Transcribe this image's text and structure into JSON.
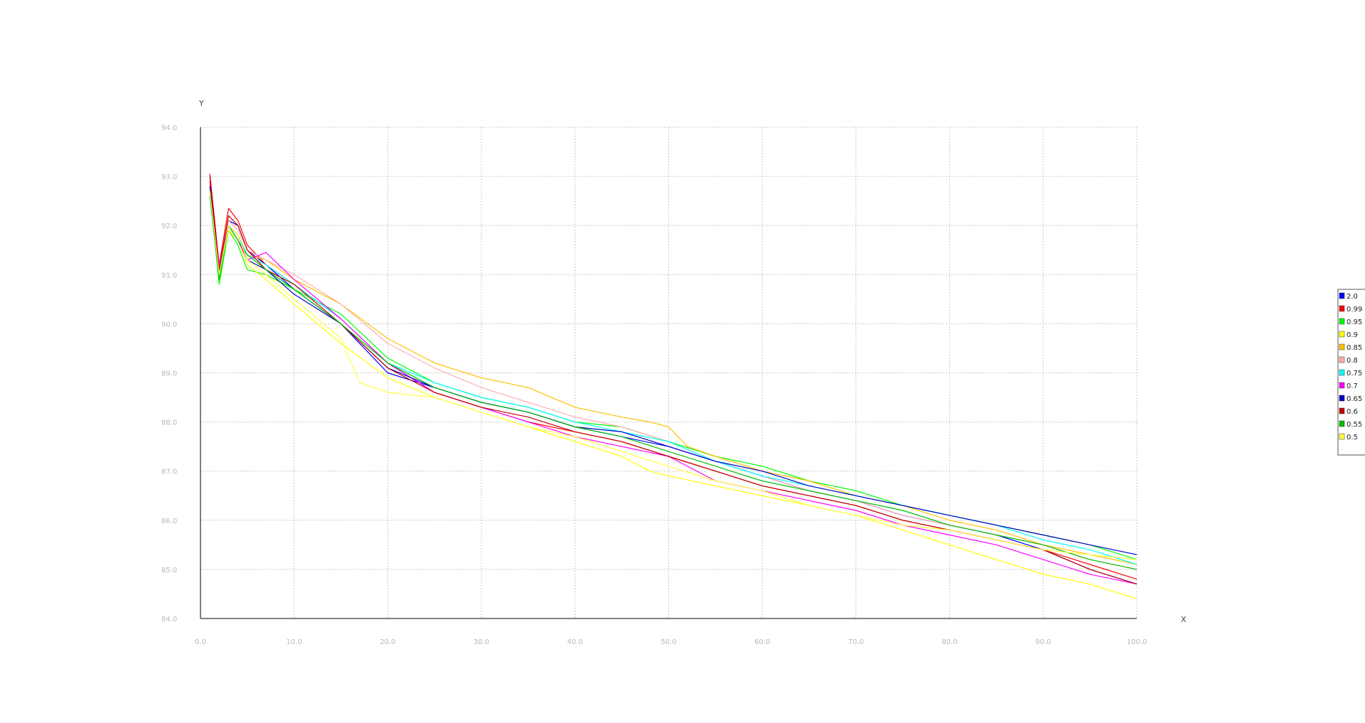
{
  "chart_data": {
    "type": "line",
    "title": "",
    "xlabel": "X",
    "ylabel": "Y",
    "xlim": [
      0,
      100
    ],
    "ylim": [
      84,
      94
    ],
    "grid": true,
    "legend_position": "right",
    "x_ticks": [
      "0.0",
      "10.0",
      "20.0",
      "30.0",
      "40.0",
      "50.0",
      "60.0",
      "70.0",
      "80.0",
      "90.0",
      "100.0"
    ],
    "y_ticks": [
      "84.0",
      "85.0",
      "86.0",
      "87.0",
      "88.0",
      "89.0",
      "90.0",
      "91.0",
      "92.0",
      "93.0",
      "94.0"
    ],
    "series": [
      {
        "name": "2.0",
        "color": "#0000ff",
        "points": [
          [
            1,
            92.9
          ],
          [
            2,
            91.1
          ],
          [
            3,
            92.1
          ],
          [
            4,
            92.0
          ],
          [
            5,
            91.5
          ],
          [
            7,
            91.2
          ],
          [
            10,
            90.7
          ],
          [
            15,
            90.0
          ],
          [
            20,
            89.0
          ],
          [
            25,
            88.7
          ],
          [
            30,
            88.4
          ],
          [
            35,
            88.2
          ],
          [
            40,
            87.9
          ],
          [
            45,
            87.7
          ],
          [
            50,
            87.5
          ],
          [
            55,
            87.2
          ],
          [
            60,
            86.9
          ],
          [
            65,
            86.6
          ],
          [
            70,
            86.4
          ],
          [
            75,
            86.1
          ],
          [
            80,
            85.9
          ],
          [
            85,
            85.7
          ],
          [
            90,
            85.4
          ],
          [
            95,
            85.0
          ],
          [
            100,
            84.7
          ]
        ]
      },
      {
        "name": "0.99",
        "color": "#ff0000",
        "points": [
          [
            1,
            93.05
          ],
          [
            2,
            91.2
          ],
          [
            3,
            92.35
          ],
          [
            4,
            92.1
          ],
          [
            5,
            91.6
          ],
          [
            7,
            91.2
          ],
          [
            10,
            90.8
          ],
          [
            15,
            90.1
          ],
          [
            20,
            89.2
          ],
          [
            25,
            88.6
          ],
          [
            30,
            88.3
          ],
          [
            35,
            88.0
          ],
          [
            40,
            87.8
          ],
          [
            45,
            87.6
          ],
          [
            50,
            87.3
          ],
          [
            55,
            87.0
          ],
          [
            60,
            86.7
          ],
          [
            65,
            86.5
          ],
          [
            70,
            86.3
          ],
          [
            75,
            86.0
          ],
          [
            80,
            85.8
          ],
          [
            85,
            85.6
          ],
          [
            90,
            85.4
          ],
          [
            95,
            85.1
          ],
          [
            100,
            84.8
          ]
        ]
      },
      {
        "name": "0.95",
        "color": "#00ff00",
        "points": [
          [
            1,
            92.7
          ],
          [
            2,
            90.8
          ],
          [
            3,
            91.9
          ],
          [
            4,
            91.6
          ],
          [
            5,
            91.1
          ],
          [
            7,
            91.0
          ],
          [
            10,
            90.7
          ],
          [
            15,
            90.2
          ],
          [
            20,
            89.3
          ],
          [
            25,
            88.8
          ],
          [
            30,
            88.5
          ],
          [
            35,
            88.3
          ],
          [
            40,
            88.0
          ],
          [
            45,
            87.9
          ],
          [
            50,
            87.6
          ],
          [
            55,
            87.3
          ],
          [
            60,
            87.1
          ],
          [
            65,
            86.8
          ],
          [
            70,
            86.6
          ],
          [
            75,
            86.3
          ],
          [
            80,
            86.1
          ],
          [
            85,
            85.9
          ],
          [
            90,
            85.7
          ],
          [
            95,
            85.5
          ],
          [
            100,
            85.2
          ]
        ]
      },
      {
        "name": "0.9",
        "color": "#ffff00",
        "points": [
          [
            1,
            92.8
          ],
          [
            2,
            91.0
          ],
          [
            3,
            91.9
          ],
          [
            4,
            91.7
          ],
          [
            5,
            91.2
          ],
          [
            7,
            90.9
          ],
          [
            10,
            90.4
          ],
          [
            15,
            89.6
          ],
          [
            20,
            88.9
          ],
          [
            25,
            88.5
          ],
          [
            30,
            88.2
          ],
          [
            35,
            87.9
          ],
          [
            40,
            87.6
          ],
          [
            45,
            87.3
          ],
          [
            48,
            87.0
          ],
          [
            50,
            86.9
          ],
          [
            55,
            86.7
          ],
          [
            60,
            86.5
          ],
          [
            65,
            86.3
          ],
          [
            70,
            86.1
          ],
          [
            75,
            85.8
          ],
          [
            80,
            85.5
          ],
          [
            85,
            85.2
          ],
          [
            90,
            84.9
          ],
          [
            95,
            84.7
          ],
          [
            100,
            84.4
          ]
        ]
      },
      {
        "name": "0.85",
        "color": "#ffc000",
        "points": [
          [
            1,
            92.85
          ],
          [
            2,
            91.0
          ],
          [
            3,
            92.0
          ],
          [
            4,
            91.8
          ],
          [
            5,
            91.4
          ],
          [
            7,
            91.3
          ],
          [
            10,
            90.9
          ],
          [
            15,
            90.4
          ],
          [
            20,
            89.7
          ],
          [
            25,
            89.2
          ],
          [
            30,
            88.9
          ],
          [
            35,
            88.7
          ],
          [
            40,
            88.3
          ],
          [
            45,
            88.1
          ],
          [
            48,
            88.0
          ],
          [
            50,
            87.9
          ],
          [
            52,
            87.5
          ],
          [
            55,
            87.3
          ],
          [
            60,
            87.0
          ],
          [
            65,
            86.8
          ],
          [
            70,
            86.5
          ],
          [
            75,
            86.3
          ],
          [
            80,
            86.0
          ],
          [
            85,
            85.8
          ],
          [
            90,
            85.5
          ],
          [
            95,
            85.3
          ],
          [
            100,
            85.1
          ]
        ]
      },
      {
        "name": "0.8",
        "color": "#ffafaf",
        "points": [
          [
            1,
            92.9
          ],
          [
            2,
            91.1
          ],
          [
            3,
            92.1
          ],
          [
            4,
            91.9
          ],
          [
            5,
            91.5
          ],
          [
            7,
            91.3
          ],
          [
            10,
            91.0
          ],
          [
            15,
            90.4
          ],
          [
            20,
            89.6
          ],
          [
            25,
            89.1
          ],
          [
            30,
            88.7
          ],
          [
            35,
            88.4
          ],
          [
            40,
            88.1
          ],
          [
            45,
            87.9
          ],
          [
            50,
            87.6
          ],
          [
            55,
            87.2
          ],
          [
            60,
            86.9
          ],
          [
            65,
            86.6
          ],
          [
            70,
            86.4
          ],
          [
            75,
            86.1
          ],
          [
            80,
            85.9
          ],
          [
            85,
            85.7
          ],
          [
            90,
            85.5
          ],
          [
            95,
            85.2
          ],
          [
            100,
            85.0
          ]
        ]
      },
      {
        "name": "0.75",
        "color": "#00ffff",
        "points": [
          [
            1,
            92.8
          ],
          [
            2,
            91.0
          ],
          [
            3,
            92.0
          ],
          [
            4,
            91.8
          ],
          [
            5,
            91.4
          ],
          [
            7,
            91.2
          ],
          [
            10,
            90.8
          ],
          [
            15,
            90.1
          ],
          [
            20,
            89.2
          ],
          [
            25,
            88.8
          ],
          [
            30,
            88.5
          ],
          [
            35,
            88.3
          ],
          [
            40,
            88.0
          ],
          [
            45,
            87.8
          ],
          [
            50,
            87.6
          ],
          [
            55,
            87.2
          ],
          [
            60,
            86.9
          ],
          [
            65,
            86.7
          ],
          [
            70,
            86.5
          ],
          [
            75,
            86.3
          ],
          [
            80,
            86.1
          ],
          [
            85,
            85.9
          ],
          [
            90,
            85.6
          ],
          [
            95,
            85.4
          ],
          [
            100,
            85.1
          ]
        ]
      },
      {
        "name": "0.7",
        "color": "#ff00ff",
        "points": [
          [
            1,
            92.9
          ],
          [
            2,
            91.2
          ],
          [
            3,
            92.0
          ],
          [
            4,
            91.7
          ],
          [
            5,
            91.3
          ],
          [
            7,
            91.45
          ],
          [
            10,
            90.9
          ],
          [
            15,
            90.1
          ],
          [
            20,
            89.2
          ],
          [
            25,
            88.6
          ],
          [
            30,
            88.3
          ],
          [
            35,
            88.0
          ],
          [
            40,
            87.7
          ],
          [
            45,
            87.5
          ],
          [
            50,
            87.3
          ],
          [
            55,
            86.8
          ],
          [
            60,
            86.6
          ],
          [
            65,
            86.4
          ],
          [
            70,
            86.2
          ],
          [
            75,
            85.9
          ],
          [
            80,
            85.7
          ],
          [
            85,
            85.5
          ],
          [
            90,
            85.2
          ],
          [
            95,
            84.9
          ],
          [
            100,
            84.7
          ]
        ]
      },
      {
        "name": "0.65",
        "color": "#0000c0",
        "points": [
          [
            1,
            92.8
          ],
          [
            2,
            91.0
          ],
          [
            3,
            92.0
          ],
          [
            4,
            91.8
          ],
          [
            5,
            91.3
          ],
          [
            7,
            91.1
          ],
          [
            10,
            90.6
          ],
          [
            15,
            90.0
          ],
          [
            20,
            89.1
          ],
          [
            25,
            88.7
          ],
          [
            30,
            88.4
          ],
          [
            35,
            88.2
          ],
          [
            40,
            87.9
          ],
          [
            45,
            87.8
          ],
          [
            50,
            87.5
          ],
          [
            55,
            87.2
          ],
          [
            60,
            87.0
          ],
          [
            65,
            86.7
          ],
          [
            70,
            86.5
          ],
          [
            75,
            86.3
          ],
          [
            80,
            86.1
          ],
          [
            85,
            85.9
          ],
          [
            90,
            85.7
          ],
          [
            95,
            85.5
          ],
          [
            100,
            85.3
          ]
        ]
      },
      {
        "name": "0.6",
        "color": "#c00000",
        "points": [
          [
            1,
            93.0
          ],
          [
            2,
            91.1
          ],
          [
            3,
            92.2
          ],
          [
            4,
            92.0
          ],
          [
            5,
            91.5
          ],
          [
            7,
            91.1
          ],
          [
            10,
            90.8
          ],
          [
            15,
            90.0
          ],
          [
            20,
            89.1
          ],
          [
            25,
            88.6
          ],
          [
            30,
            88.3
          ],
          [
            35,
            88.1
          ],
          [
            40,
            87.8
          ],
          [
            45,
            87.6
          ],
          [
            50,
            87.3
          ],
          [
            55,
            87.0
          ],
          [
            60,
            86.7
          ],
          [
            65,
            86.5
          ],
          [
            70,
            86.3
          ],
          [
            75,
            86.0
          ],
          [
            80,
            85.8
          ],
          [
            85,
            85.6
          ],
          [
            90,
            85.4
          ],
          [
            95,
            85.0
          ],
          [
            100,
            84.7
          ]
        ]
      },
      {
        "name": "0.55",
        "color": "#00c000",
        "points": [
          [
            1,
            92.6
          ],
          [
            2,
            90.9
          ],
          [
            3,
            92.0
          ],
          [
            4,
            91.7
          ],
          [
            5,
            91.4
          ],
          [
            7,
            91.1
          ],
          [
            10,
            90.7
          ],
          [
            15,
            90.0
          ],
          [
            20,
            89.2
          ],
          [
            25,
            88.7
          ],
          [
            30,
            88.4
          ],
          [
            35,
            88.2
          ],
          [
            40,
            87.9
          ],
          [
            45,
            87.7
          ],
          [
            50,
            87.4
          ],
          [
            55,
            87.1
          ],
          [
            60,
            86.8
          ],
          [
            65,
            86.6
          ],
          [
            70,
            86.4
          ],
          [
            75,
            86.2
          ],
          [
            80,
            85.9
          ],
          [
            85,
            85.7
          ],
          [
            90,
            85.5
          ],
          [
            95,
            85.2
          ],
          [
            100,
            85.0
          ]
        ]
      },
      {
        "name": "0.5",
        "color": "#ffff40",
        "points": [
          [
            1,
            92.7
          ],
          [
            2,
            91.0
          ],
          [
            3,
            92.0
          ],
          [
            4,
            91.8
          ],
          [
            5,
            91.3
          ],
          [
            7,
            91.0
          ],
          [
            10,
            90.5
          ],
          [
            15,
            89.7
          ],
          [
            17,
            88.8
          ],
          [
            20,
            88.6
          ],
          [
            25,
            88.5
          ],
          [
            30,
            88.2
          ],
          [
            35,
            87.9
          ],
          [
            40,
            87.7
          ],
          [
            45,
            87.4
          ],
          [
            50,
            87.1
          ],
          [
            55,
            86.8
          ],
          [
            60,
            86.6
          ],
          [
            65,
            86.3
          ],
          [
            70,
            86.1
          ],
          [
            75,
            85.9
          ],
          [
            80,
            85.8
          ],
          [
            85,
            85.6
          ],
          [
            90,
            85.4
          ],
          [
            95,
            85.3
          ],
          [
            100,
            85.2
          ]
        ]
      }
    ]
  }
}
